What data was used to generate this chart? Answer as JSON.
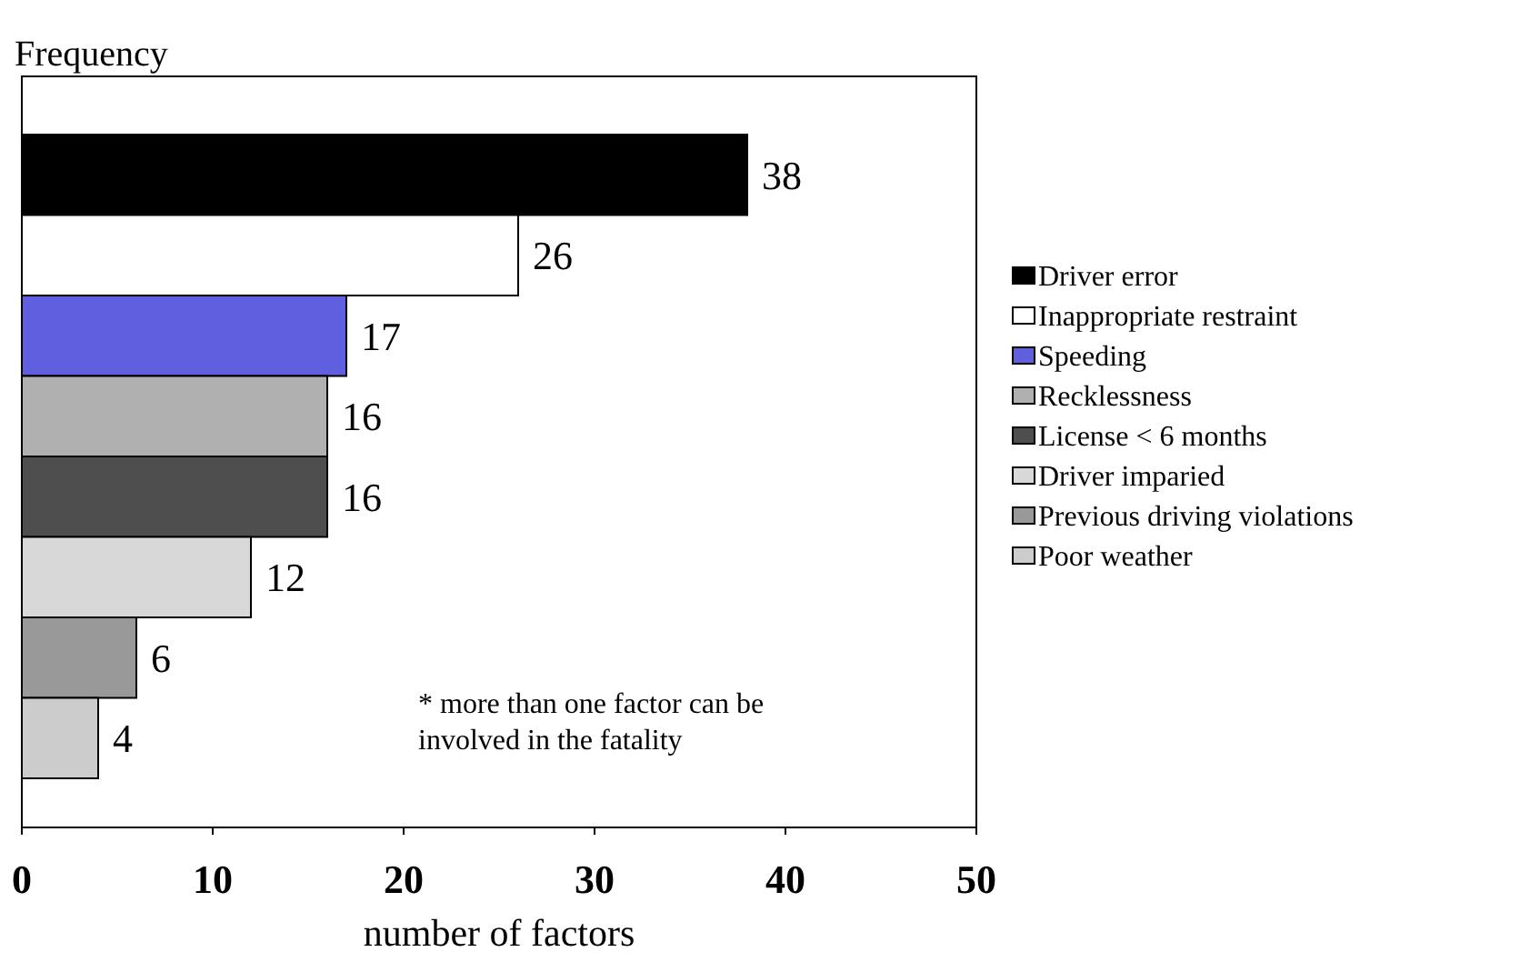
{
  "chart_data": {
    "type": "bar",
    "orientation": "horizontal",
    "stacked": true,
    "ylabel": "Frequency",
    "xlabel": "number of factors",
    "categories": [
      null,
      null,
      null,
      null,
      null,
      null,
      null,
      null
    ],
    "series": [
      {
        "name": "Driver error",
        "color": "#000000",
        "values": [
          38,
          null,
          null,
          null,
          null,
          null,
          null,
          null
        ]
      },
      {
        "name": "Inappropriate restraint",
        "color": "#ffffff",
        "values": [
          null,
          26,
          null,
          null,
          null,
          null,
          null,
          null
        ]
      },
      {
        "name": "Speeding",
        "color": "#5f5fdf",
        "values": [
          null,
          null,
          17,
          null,
          null,
          null,
          null,
          null
        ]
      },
      {
        "name": "Recklessness",
        "color": "#b0b0b0",
        "values": [
          null,
          null,
          null,
          16,
          null,
          null,
          null,
          null
        ]
      },
      {
        "name": "License < 6 months",
        "color": "#4e4e4e",
        "values": [
          null,
          null,
          null,
          null,
          16,
          null,
          null,
          null
        ]
      },
      {
        "name": "Driver imparied",
        "color": "#d8d8d8",
        "values": [
          null,
          null,
          null,
          null,
          null,
          12,
          null,
          null
        ]
      },
      {
        "name": "Previous driving violations",
        "color": "#999999",
        "values": [
          null,
          null,
          null,
          null,
          null,
          null,
          6,
          null
        ]
      },
      {
        "name": "Poor weather",
        "color": "#cccccc",
        "values": [
          null,
          null,
          null,
          null,
          null,
          null,
          null,
          4
        ]
      }
    ],
    "xlim": [
      0,
      50
    ],
    "xticks": [
      0,
      10,
      20,
      30,
      40,
      50
    ],
    "data_labels": true,
    "legend": "right",
    "tick_labels": "x",
    "annotations": [
      "* more than one factor can be involved in the fatality"
    ]
  }
}
